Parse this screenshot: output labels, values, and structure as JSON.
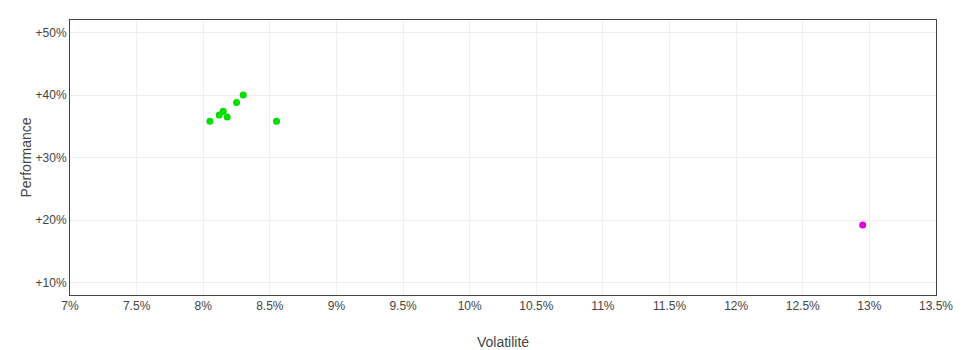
{
  "chart_data": {
    "type": "scatter",
    "xlabel": "Volatilité",
    "ylabel": "Performance",
    "xlim": [
      0.07,
      0.135
    ],
    "ylim": [
      0.08,
      0.52
    ],
    "xticks": [
      {
        "value": 0.07,
        "label": "7%"
      },
      {
        "value": 0.075,
        "label": "7.5%"
      },
      {
        "value": 0.08,
        "label": "8%"
      },
      {
        "value": 0.085,
        "label": "8.5%"
      },
      {
        "value": 0.09,
        "label": "9%"
      },
      {
        "value": 0.095,
        "label": "9.5%"
      },
      {
        "value": 0.1,
        "label": "10%"
      },
      {
        "value": 0.105,
        "label": "10.5%"
      },
      {
        "value": 0.11,
        "label": "11%"
      },
      {
        "value": 0.115,
        "label": "11.5%"
      },
      {
        "value": 0.12,
        "label": "12%"
      },
      {
        "value": 0.125,
        "label": "12.5%"
      },
      {
        "value": 0.13,
        "label": "13%"
      },
      {
        "value": 0.135,
        "label": "13.5%"
      }
    ],
    "yticks": [
      {
        "value": 0.1,
        "label": "+10%"
      },
      {
        "value": 0.2,
        "label": "+20%"
      },
      {
        "value": 0.3,
        "label": "+30%"
      },
      {
        "value": 0.4,
        "label": "+40%"
      },
      {
        "value": 0.5,
        "label": "+50%"
      }
    ],
    "grid": true,
    "series": [
      {
        "color": "#00dd00",
        "x": [
          0.083,
          0.0825,
          0.0815,
          0.0812,
          0.0818,
          0.0805,
          0.0855
        ],
        "values": [
          0.4,
          0.388,
          0.374,
          0.368,
          0.365,
          0.358,
          0.358
        ]
      },
      {
        "color": "#dd00dd",
        "x": [
          0.1295
        ],
        "values": [
          0.192
        ]
      }
    ]
  }
}
